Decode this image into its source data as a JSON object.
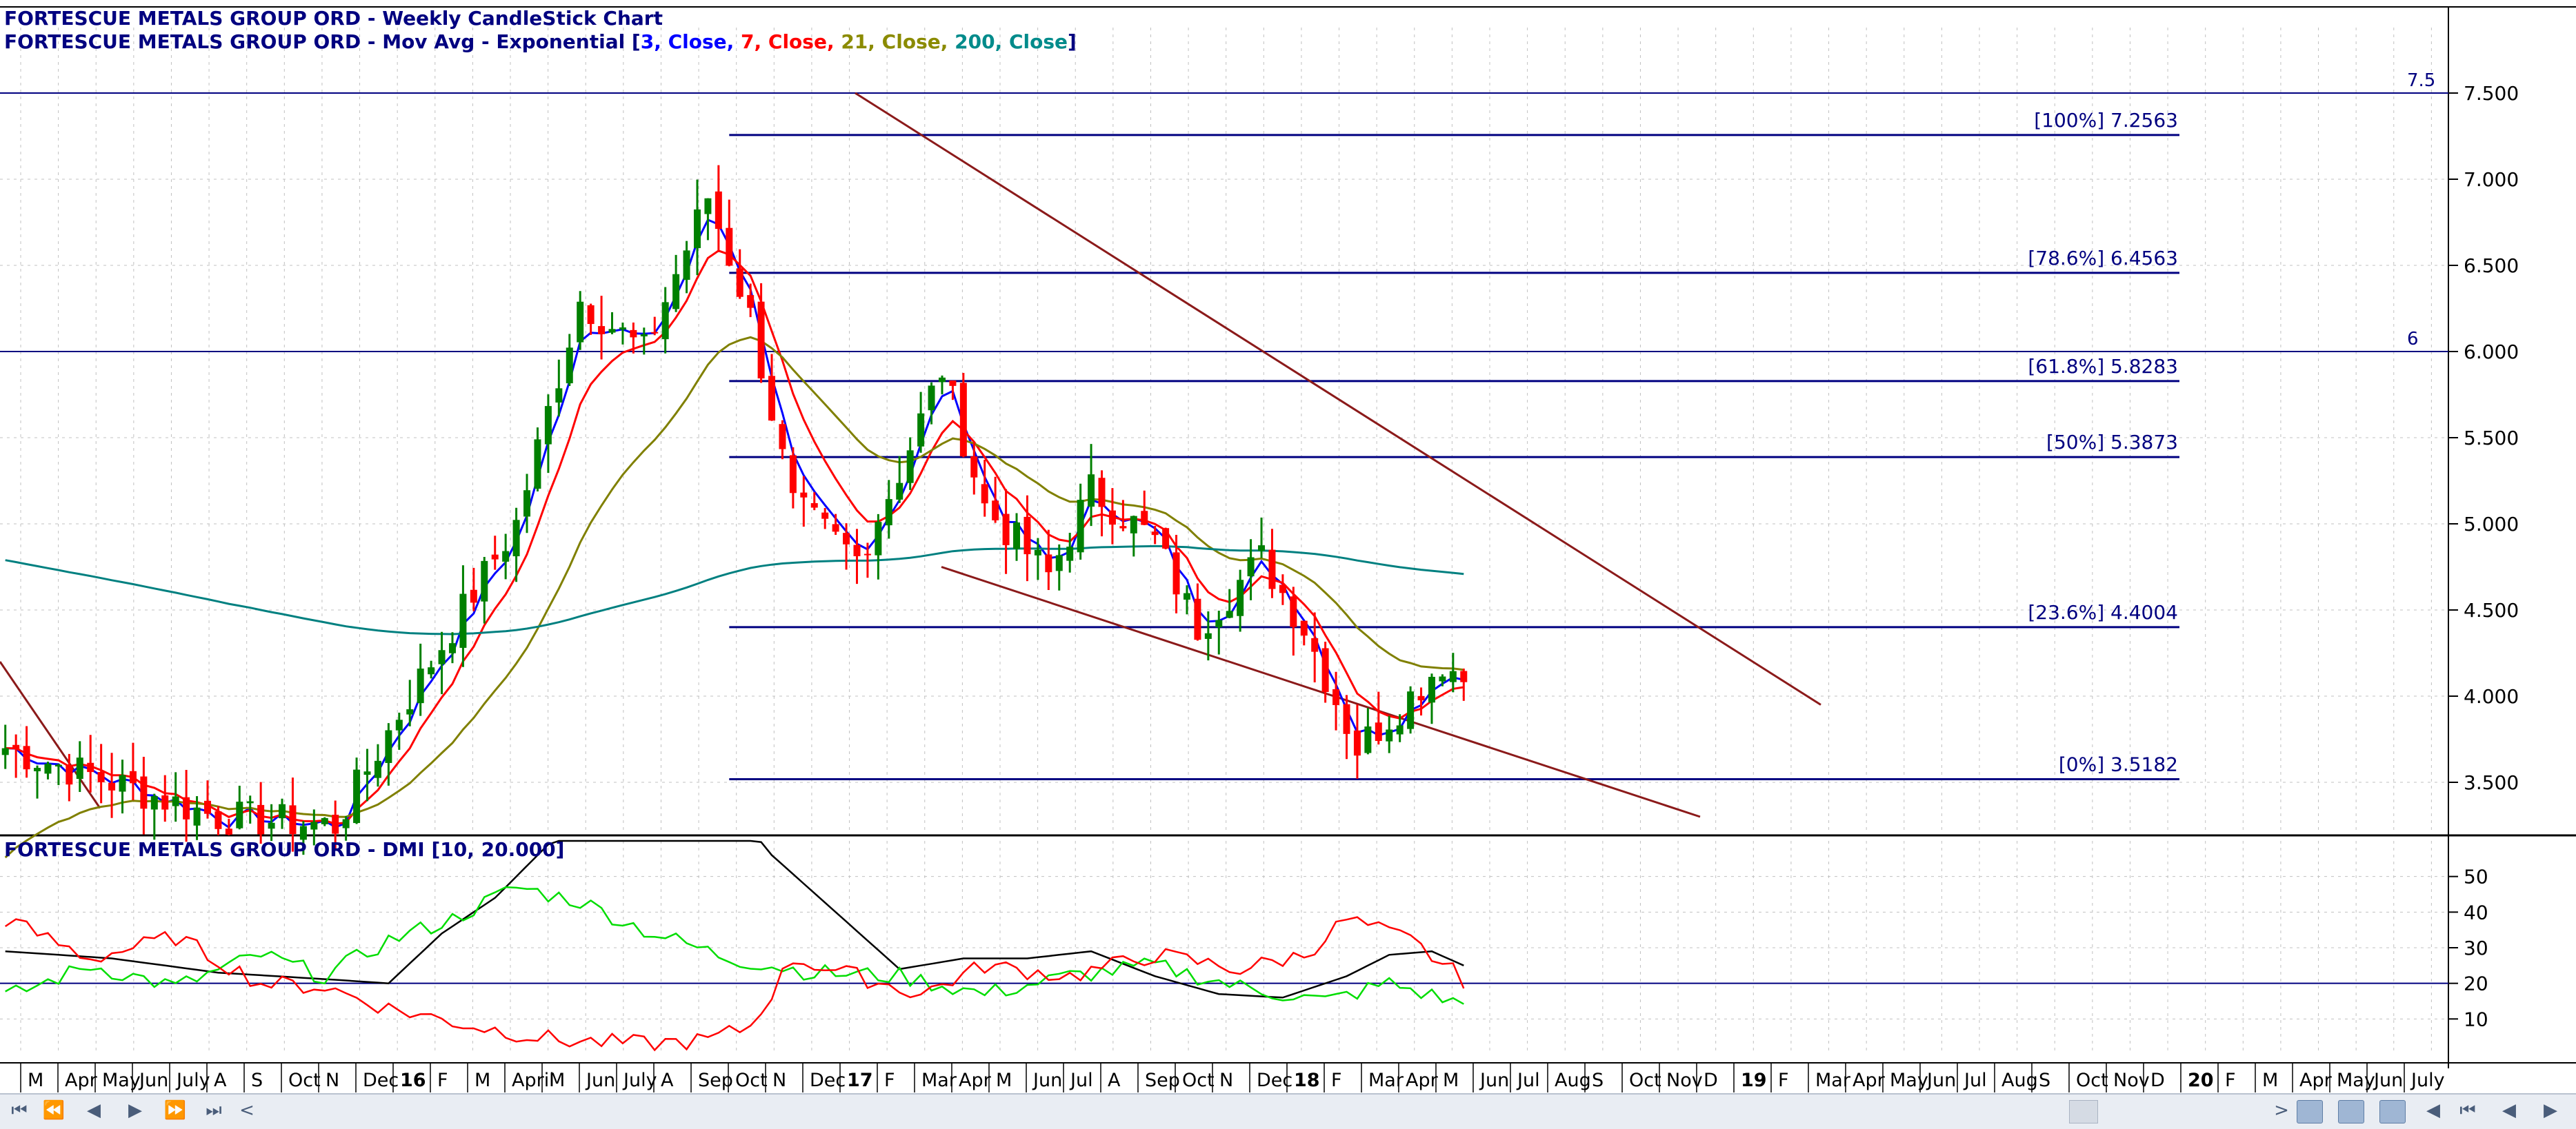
{
  "header": {
    "line1": "FORTESCUE METALS GROUP ORD - Weekly CandleStick Chart",
    "line2_prefix": "FORTESCUE METALS GROUP ORD - Mov Avg - Exponential [",
    "ma_params": [
      {
        "text": "3",
        "color": "#0000ff"
      },
      {
        "text": ", Close, ",
        "color": "#0000ff"
      },
      {
        "text": "7",
        "color": "#ff0000"
      },
      {
        "text": ", Close, ",
        "color": "#ff0000"
      },
      {
        "text": "21",
        "color": "#8b8b00"
      },
      {
        "text": ", Close, ",
        "color": "#8b8b00"
      },
      {
        "text": "200",
        "color": "#008b8b"
      },
      {
        "text": ", Close",
        "color": "#008b8b"
      }
    ],
    "line2_suffix": "]",
    "dmi_title": "FORTESCUE METALS GROUP ORD - DMI [10, 20.000]"
  },
  "colors": {
    "navy": "#000080",
    "up_candle": "#008000",
    "down_candle": "#ff0000",
    "ema3": "#0000ff",
    "ema7": "#ff0000",
    "ema21": "#808000",
    "ema200": "#008080",
    "channel": "#8b1a1a",
    "grid": "#c0c0c0",
    "adx": "#000000",
    "plus_di": "#00dd00",
    "minus_di": "#ff0000"
  },
  "chart_data": [
    {
      "type": "candlestick",
      "title": "FORTESCUE METALS GROUP ORD - Weekly CandleStick Chart",
      "ylim": [
        3.2,
        7.8
      ],
      "y_ticks": [
        "3.500",
        "4.000",
        "4.500",
        "5.000",
        "5.500",
        "6.000",
        "6.500",
        "7.000",
        "7.500"
      ],
      "y_tick_values": [
        3.5,
        4.0,
        4.5,
        5.0,
        5.5,
        6.0,
        6.5,
        7.0,
        7.5
      ],
      "horizontal_lines": [
        {
          "value": 7.5,
          "label": "7.5"
        },
        {
          "value": 6.0,
          "label": "6"
        }
      ],
      "fibonacci": [
        {
          "label": "[100%] 7.2563",
          "value": 7.2563
        },
        {
          "label": "[78.6%] 6.4563",
          "value": 6.4563
        },
        {
          "label": "[61.8%] 5.8283",
          "value": 5.8283
        },
        {
          "label": "[50%] 5.3873",
          "value": 5.3873
        },
        {
          "label": "[23.6%] 4.4004",
          "value": 4.4004
        },
        {
          "label": "[0%] 3.5182",
          "value": 3.5182
        }
      ],
      "weekly_close_anchors": [
        {
          "week": 0,
          "close": 3.7
        },
        {
          "week": 20,
          "close": 3.3
        },
        {
          "week": 31,
          "close": 3.25
        },
        {
          "week": 37,
          "close": 3.9
        },
        {
          "week": 48,
          "close": 5.0
        },
        {
          "week": 54,
          "close": 6.3
        },
        {
          "week": 60,
          "close": 6.0
        },
        {
          "week": 66,
          "close": 6.9
        },
        {
          "week": 70,
          "close": 6.2
        },
        {
          "week": 74,
          "close": 5.1
        },
        {
          "week": 80,
          "close": 4.8
        },
        {
          "week": 84,
          "close": 5.3
        },
        {
          "week": 88,
          "close": 5.9
        },
        {
          "week": 92,
          "close": 5.1
        },
        {
          "week": 98,
          "close": 4.7
        },
        {
          "week": 102,
          "close": 5.2
        },
        {
          "week": 108,
          "close": 4.9
        },
        {
          "week": 112,
          "close": 4.4
        },
        {
          "week": 118,
          "close": 4.8
        },
        {
          "week": 122,
          "close": 4.4
        },
        {
          "week": 127,
          "close": 3.7
        },
        {
          "week": 132,
          "close": 4.0
        },
        {
          "week": 135,
          "close": 4.2
        },
        {
          "week": 137,
          "close": 4.1
        }
      ],
      "series": [
        {
          "name": "3, Close"
        },
        {
          "name": "7, Close"
        },
        {
          "name": "21, Close"
        },
        {
          "name": "200, Close"
        }
      ]
    },
    {
      "type": "line",
      "title": "FORTESCUE METALS GROUP ORD - DMI [10, 20.000]",
      "ylim": [
        0,
        60
      ],
      "y_ticks": [
        "10",
        "20",
        "30",
        "40",
        "50"
      ],
      "y_tick_values": [
        10,
        20,
        30,
        40,
        50
      ],
      "reference_line": 20,
      "adx_anchors": [
        [
          0,
          29
        ],
        [
          10,
          27
        ],
        [
          20,
          23
        ],
        [
          31,
          21
        ],
        [
          36,
          20
        ],
        [
          41,
          34
        ],
        [
          46,
          44
        ],
        [
          52,
          62
        ],
        [
          58,
          74
        ],
        [
          66,
          78
        ],
        [
          72,
          56
        ],
        [
          78,
          40
        ],
        [
          84,
          24
        ],
        [
          90,
          27
        ],
        [
          96,
          27
        ],
        [
          102,
          29
        ],
        [
          108,
          22
        ],
        [
          114,
          17
        ],
        [
          120,
          16
        ],
        [
          126,
          22
        ],
        [
          130,
          28
        ],
        [
          134,
          29
        ],
        [
          137,
          25
        ]
      ],
      "plus_di_anchors": [
        [
          0,
          16
        ],
        [
          8,
          25
        ],
        [
          16,
          19
        ],
        [
          24,
          28
        ],
        [
          30,
          22
        ],
        [
          36,
          32
        ],
        [
          42,
          38
        ],
        [
          48,
          47
        ],
        [
          54,
          43
        ],
        [
          60,
          35
        ],
        [
          68,
          27
        ],
        [
          76,
          23
        ],
        [
          84,
          22
        ],
        [
          92,
          17
        ],
        [
          100,
          22
        ],
        [
          108,
          25
        ],
        [
          116,
          19
        ],
        [
          124,
          15
        ],
        [
          130,
          20
        ],
        [
          137,
          14
        ]
      ],
      "minus_di_anchors": [
        [
          0,
          38
        ],
        [
          8,
          27
        ],
        [
          16,
          33
        ],
        [
          24,
          20
        ],
        [
          30,
          19
        ],
        [
          36,
          13
        ],
        [
          44,
          8
        ],
        [
          52,
          4
        ],
        [
          60,
          3
        ],
        [
          66,
          4
        ],
        [
          70,
          8
        ],
        [
          74,
          27
        ],
        [
          80,
          22
        ],
        [
          86,
          17
        ],
        [
          92,
          25
        ],
        [
          100,
          22
        ],
        [
          108,
          28
        ],
        [
          116,
          24
        ],
        [
          122,
          28
        ],
        [
          126,
          38
        ],
        [
          132,
          32
        ],
        [
          137,
          21
        ]
      ]
    }
  ],
  "x_axis": {
    "labels": [
      {
        "text": "M",
        "bold": false
      },
      {
        "text": "Apr",
        "bold": false
      },
      {
        "text": "May",
        "bold": false
      },
      {
        "text": "Jun",
        "bold": false
      },
      {
        "text": "July",
        "bold": false
      },
      {
        "text": "A",
        "bold": false
      },
      {
        "text": "S",
        "bold": false
      },
      {
        "text": "Oct",
        "bold": false
      },
      {
        "text": "N",
        "bold": false
      },
      {
        "text": "Dec",
        "bold": false
      },
      {
        "text": "16",
        "bold": true
      },
      {
        "text": "F",
        "bold": false
      },
      {
        "text": "M",
        "bold": false
      },
      {
        "text": "April",
        "bold": false
      },
      {
        "text": "M",
        "bold": false
      },
      {
        "text": "Jun",
        "bold": false
      },
      {
        "text": "July",
        "bold": false
      },
      {
        "text": "A",
        "bold": false
      },
      {
        "text": "Sep",
        "bold": false
      },
      {
        "text": "Oct",
        "bold": false
      },
      {
        "text": "N",
        "bold": false
      },
      {
        "text": "Dec",
        "bold": false
      },
      {
        "text": "17",
        "bold": true
      },
      {
        "text": "F",
        "bold": false
      },
      {
        "text": "Mar",
        "bold": false
      },
      {
        "text": "Apr",
        "bold": false
      },
      {
        "text": "M",
        "bold": false
      },
      {
        "text": "Jun",
        "bold": false
      },
      {
        "text": "Jul",
        "bold": false
      },
      {
        "text": "A",
        "bold": false
      },
      {
        "text": "Sep",
        "bold": false
      },
      {
        "text": "Oct",
        "bold": false
      },
      {
        "text": "N",
        "bold": false
      },
      {
        "text": "Dec",
        "bold": false
      },
      {
        "text": "18",
        "bold": true
      },
      {
        "text": "F",
        "bold": false
      },
      {
        "text": "Mar",
        "bold": false
      },
      {
        "text": "Apr",
        "bold": false
      },
      {
        "text": "M",
        "bold": false
      },
      {
        "text": "Jun",
        "bold": false
      },
      {
        "text": "Jul",
        "bold": false
      },
      {
        "text": "Aug",
        "bold": false
      },
      {
        "text": "S",
        "bold": false
      },
      {
        "text": "Oct",
        "bold": false
      },
      {
        "text": "Nov",
        "bold": false
      },
      {
        "text": "D",
        "bold": false
      },
      {
        "text": "19",
        "bold": true
      },
      {
        "text": "F",
        "bold": false
      },
      {
        "text": "Mar",
        "bold": false
      },
      {
        "text": "Apr",
        "bold": false
      },
      {
        "text": "May",
        "bold": false
      },
      {
        "text": "Jun",
        "bold": false
      },
      {
        "text": "Jul",
        "bold": false
      },
      {
        "text": "Aug",
        "bold": false
      },
      {
        "text": "S",
        "bold": false
      },
      {
        "text": "Oct",
        "bold": false
      },
      {
        "text": "Nov",
        "bold": false
      },
      {
        "text": "D",
        "bold": false
      },
      {
        "text": "20",
        "bold": true
      },
      {
        "text": "F",
        "bold": false
      },
      {
        "text": "M",
        "bold": false
      },
      {
        "text": "Apr",
        "bold": false
      },
      {
        "text": "May",
        "bold": false
      },
      {
        "text": "Jun",
        "bold": false
      },
      {
        "text": "July",
        "bold": false
      }
    ]
  },
  "navigation": {
    "buttons": [
      "first",
      "fast-back",
      "back",
      "forward",
      "fast-forward",
      "last"
    ],
    "scroll_left": "<",
    "scroll_right": ">"
  }
}
